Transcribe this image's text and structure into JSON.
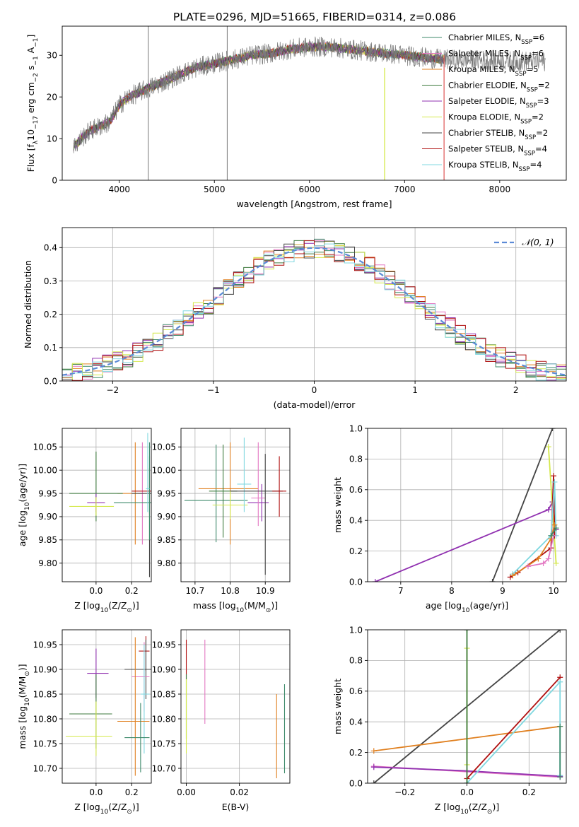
{
  "figure": {
    "title": "PLATE=0296, MJD=51665, FIBERID=0314, z=0.086"
  },
  "model_colors": [
    "#5f7f5f",
    "#9b4fa0",
    "#e4a72e",
    "#3d7a3d",
    "#8e2aa8",
    "#d7e54a",
    "#555555",
    "#b01010",
    "#7fd6e0"
  ],
  "models": [
    {
      "label": "Chabrier MILES, N",
      "sub": "SSP",
      "tail": "=6",
      "color": "#3d8a6a"
    },
    {
      "label": "Salpeter MILES, N",
      "sub": "SSP",
      "tail": "=6",
      "color": "#e377c2"
    },
    {
      "label": "Kroupa MILES, N",
      "sub": "SSP",
      "tail": "=5",
      "color": "#e08020"
    },
    {
      "label": "Chabrier ELODIE, N",
      "sub": "SSP",
      "tail": "=2",
      "color": "#3d7a3d"
    },
    {
      "label": "Salpeter ELODIE, N",
      "sub": "SSP",
      "tail": "=3",
      "color": "#9030b0"
    },
    {
      "label": "Kroupa ELODIE, N",
      "sub": "SSP",
      "tail": "=2",
      "color": "#d4e84a"
    },
    {
      "label": "Chabrier STELIB, N",
      "sub": "SSP",
      "tail": "=2",
      "color": "#444444"
    },
    {
      "label": "Salpeter STELIB, N",
      "sub": "SSP",
      "tail": "=4",
      "color": "#b01010"
    },
    {
      "label": "Kroupa STELIB, N",
      "sub": "SSP",
      "tail": "=4",
      "color": "#80d8e0"
    }
  ],
  "chart_data": [
    {
      "id": "spectrum",
      "type": "line",
      "xlabel": "wavelength [Angstrom, rest frame]",
      "ylabel_parts": [
        "Flux [f",
        "λ",
        "10",
        "−17",
        " erg cm",
        "−2",
        " s",
        "−1",
        " A",
        "−1",
        "]"
      ],
      "xlim": [
        3400,
        8700
      ],
      "ylim": [
        0,
        37
      ],
      "xticks": [
        4000,
        5000,
        6000,
        7000,
        8000
      ],
      "yticks": [
        0,
        10,
        20,
        30
      ],
      "grid": false,
      "legend": "right",
      "continuum": [
        [
          3520,
          8
        ],
        [
          3600,
          10
        ],
        [
          3700,
          12
        ],
        [
          3800,
          13
        ],
        [
          3900,
          14
        ],
        [
          4000,
          18
        ],
        [
          4100,
          20
        ],
        [
          4200,
          21
        ],
        [
          4300,
          22
        ],
        [
          4400,
          23
        ],
        [
          4500,
          24
        ],
        [
          4600,
          25
        ],
        [
          4700,
          26
        ],
        [
          4800,
          27
        ],
        [
          4900,
          27.5
        ],
        [
          5000,
          28
        ],
        [
          5200,
          29
        ],
        [
          5400,
          30
        ],
        [
          5600,
          30.5
        ],
        [
          5800,
          31.5
        ],
        [
          6000,
          32
        ],
        [
          6200,
          32
        ],
        [
          6400,
          31.5
        ],
        [
          6600,
          31
        ],
        [
          6800,
          30.5
        ],
        [
          7000,
          30
        ],
        [
          7200,
          29.5
        ],
        [
          7400,
          29
        ]
      ],
      "vlines": [
        4305,
        5135
      ]
    },
    {
      "id": "residuals",
      "type": "step",
      "xlabel": "(data-model)/error",
      "ylabel": "Normed distribution",
      "xlim": [
        -2.5,
        2.5
      ],
      "ylim": [
        0,
        0.46
      ],
      "xticks": [
        -2,
        -1,
        0,
        1,
        2
      ],
      "yticks": [
        0.0,
        0.1,
        0.2,
        0.3,
        0.4
      ],
      "grid": true,
      "legend": "top-right",
      "legend_label": "𝒩(0, 1)"
    },
    {
      "id": "age-vs-Z",
      "type": "errorbar",
      "xlabel_parts": [
        "Z [log",
        "10",
        "(Z/Z",
        "⊙",
        ")]"
      ],
      "ylabel_parts": [
        "age  [log",
        "10",
        "(age/yr)]"
      ],
      "xlim": [
        -0.19,
        0.31
      ],
      "ylim": [
        9.76,
        10.09
      ],
      "xticks": [
        0.0,
        0.2
      ],
      "yticks": [
        9.8,
        9.85,
        9.9,
        9.95,
        10.0,
        10.05
      ],
      "grid": true,
      "points": [
        {
          "x": 0.22,
          "y": 9.95,
          "xe": [
            0.1,
            0.05
          ],
          "ye": [
            0.11,
            0.11
          ],
          "c": 2
        },
        {
          "x": 0.26,
          "y": 9.95,
          "xe": [
            0.02,
            0.02
          ],
          "ye": [
            0.11,
            0.11
          ],
          "c": 1
        },
        {
          "x": 0.0,
          "y": 9.95,
          "xe": [
            0.15,
            0.15
          ],
          "ye": [
            0.06,
            0.09
          ],
          "c": 3
        },
        {
          "x": 0.0,
          "y": 9.93,
          "xe": [
            0.05,
            0.05
          ],
          "ye": [
            0.02,
            0.02
          ],
          "c": 4
        },
        {
          "x": 0.0,
          "y": 9.922,
          "xe": [
            0.15,
            0.1
          ],
          "ye": [
            0.02,
            0.02
          ],
          "c": 5
        },
        {
          "x": 0.3,
          "y": 9.95,
          "xe": [
            0.1,
            0.01
          ],
          "ye": [
            0.18,
            0.08
          ],
          "c": 6
        },
        {
          "x": 0.3,
          "y": 9.955,
          "xe": [
            0.1,
            0.01
          ],
          "ye": [
            0.05,
            0.05
          ],
          "c": 7
        },
        {
          "x": 0.3,
          "y": 9.93,
          "xe": [
            0.2,
            0.01
          ],
          "ye": [
            0.08,
            0.13
          ],
          "c": 0
        },
        {
          "x": 0.29,
          "y": 9.96,
          "xe": [
            0.01,
            0.01
          ],
          "ye": [
            0.05,
            0.12
          ],
          "c": 8
        }
      ]
    },
    {
      "id": "age-vs-mass",
      "type": "errorbar",
      "xlabel_parts": [
        "mass [log",
        "10",
        "(M/M",
        "⊙",
        ")]"
      ],
      "xlim": [
        10.66,
        10.97
      ],
      "ylim": [
        9.76,
        10.09
      ],
      "xticks": [
        10.7,
        10.8,
        10.9
      ],
      "yticks": [
        9.8,
        9.85,
        9.9,
        9.95,
        10.0,
        10.05
      ],
      "grid": true,
      "points": [
        {
          "x": 10.76,
          "y": 9.935,
          "xe": [
            0.09,
            0.09
          ],
          "ye": [
            0.09,
            0.12
          ],
          "c": 0
        },
        {
          "x": 10.8,
          "y": 9.96,
          "xe": [
            0.09,
            0.08
          ],
          "ye": [
            0.12,
            0.1
          ],
          "c": 2
        },
        {
          "x": 10.78,
          "y": 9.955,
          "xe": [
            0.04,
            0.04
          ],
          "ye": [
            0.1,
            0.1
          ],
          "c": 3
        },
        {
          "x": 10.8,
          "y": 9.925,
          "xe": [
            0.05,
            0.05
          ],
          "ye": [
            0.03,
            0.03
          ],
          "c": 5
        },
        {
          "x": 10.84,
          "y": 9.97,
          "xe": [
            0.02,
            0.02
          ],
          "ye": [
            0.06,
            0.1
          ],
          "c": 8
        },
        {
          "x": 10.89,
          "y": 9.93,
          "xe": [
            0.04,
            0.02
          ],
          "ye": [
            0.04,
            0.04
          ],
          "c": 4
        },
        {
          "x": 10.88,
          "y": 9.94,
          "xe": [
            0.02,
            0.02
          ],
          "ye": [
            0.06,
            0.12
          ],
          "c": 1
        },
        {
          "x": 10.9,
          "y": 9.955,
          "xe": [
            0.1,
            0.05
          ],
          "ye": [
            0.18,
            0.08
          ],
          "c": 6
        },
        {
          "x": 10.94,
          "y": 9.955,
          "xe": [
            0.02,
            0.02
          ],
          "ye": [
            0.055,
            0.075
          ],
          "c": 7
        }
      ]
    },
    {
      "id": "weight-vs-age",
      "type": "line",
      "xlabel_parts": [
        "age  [log",
        "10",
        "(age/yr)]"
      ],
      "ylabel": "mass weight",
      "xlim": [
        6.35,
        10.25
      ],
      "ylim": [
        0,
        1
      ],
      "xticks": [
        7,
        8,
        9,
        10
      ],
      "yticks": [
        0.0,
        0.2,
        0.4,
        0.6,
        0.8,
        1.0
      ],
      "grid": true,
      "series": [
        {
          "c": 6,
          "pts": [
            [
              8.8,
              0
            ],
            [
              9.98,
              1.0
            ]
          ]
        },
        {
          "c": 4,
          "pts": [
            [
              6.5,
              0
            ],
            [
              9.9,
              0.47
            ],
            [
              9.98,
              0.52
            ],
            [
              10.05,
              0.34
            ]
          ]
        },
        {
          "c": 5,
          "pts": [
            [
              9.9,
              0.88
            ],
            [
              10.05,
              0.12
            ]
          ]
        },
        {
          "c": 7,
          "pts": [
            [
              9.15,
              0.03
            ],
            [
              9.3,
              0.06
            ],
            [
              9.95,
              0.22
            ],
            [
              10.0,
              0.69
            ],
            [
              10.02,
              0.3
            ]
          ]
        },
        {
          "c": 8,
          "pts": [
            [
              9.2,
              0.05
            ],
            [
              9.95,
              0.3
            ],
            [
              10.02,
              0.65
            ],
            [
              10.05,
              0.3
            ]
          ]
        },
        {
          "c": 2,
          "pts": [
            [
              9.2,
              0.04
            ],
            [
              9.7,
              0.15
            ],
            [
              9.95,
              0.28
            ],
            [
              10.02,
              0.37
            ]
          ]
        },
        {
          "c": 1,
          "pts": [
            [
              9.5,
              0.1
            ],
            [
              9.8,
              0.12
            ],
            [
              9.9,
              0.15
            ],
            [
              10.0,
              0.3
            ]
          ]
        },
        {
          "c": 0,
          "pts": [
            [
              9.95,
              0.3
            ],
            [
              10.05,
              0.35
            ]
          ]
        }
      ]
    },
    {
      "id": "mass-vs-Z",
      "type": "errorbar",
      "xlabel_parts": [
        "Z [log",
        "10",
        "(Z/Z",
        "⊙",
        ")]"
      ],
      "ylabel_parts": [
        "mass [log",
        "10",
        "(M/M",
        "⊙",
        ")]"
      ],
      "xlim": [
        -0.19,
        0.31
      ],
      "ylim": [
        10.67,
        10.98
      ],
      "xticks": [
        0.0,
        0.2
      ],
      "yticks": [
        10.7,
        10.75,
        10.8,
        10.85,
        10.9,
        10.95
      ],
      "grid": true,
      "points": [
        {
          "x": 0.0,
          "y": 10.892,
          "xe": [
            0.05,
            0.07
          ],
          "ye": [
            0.05,
            0.05
          ],
          "c": 4
        },
        {
          "x": 0.28,
          "y": 10.937,
          "xe": [
            0.04,
            0.02
          ],
          "ye": [
            0.04,
            0.03
          ],
          "c": 7
        },
        {
          "x": 0.28,
          "y": 10.9,
          "xe": [
            0.12,
            0.03
          ],
          "ye": [
            0.06,
            0.06
          ],
          "c": 6
        },
        {
          "x": 0.27,
          "y": 10.885,
          "xe": [
            0.07,
            0.03
          ],
          "ye": [
            0.07,
            0.07
          ],
          "c": 1
        },
        {
          "x": 0.27,
          "y": 10.85,
          "xe": [
            0.02,
            0.03
          ],
          "ye": [
            0.12,
            0.1
          ],
          "c": 8
        },
        {
          "x": 0.0,
          "y": 10.81,
          "xe": [
            0.15,
            0.09
          ],
          "ye": [
            0.07,
            0.08
          ],
          "c": 3
        },
        {
          "x": 0.22,
          "y": 10.795,
          "xe": [
            0.1,
            0.08
          ],
          "ye": [
            0.11,
            0.17
          ],
          "c": 2
        },
        {
          "x": 0.0,
          "y": 10.765,
          "xe": [
            0.17,
            0.09
          ],
          "ye": [
            0.04,
            0.07
          ],
          "c": 5
        },
        {
          "x": 0.25,
          "y": 10.762,
          "xe": [
            0.09,
            0.05
          ],
          "ye": [
            0.07,
            0.07
          ],
          "c": 0
        }
      ]
    },
    {
      "id": "mass-vs-EBV",
      "type": "errorbar",
      "xlabel": "E(B-V)",
      "xlim": [
        -0.002,
        0.039
      ],
      "ylim": [
        10.67,
        10.98
      ],
      "xticks": [
        0.0,
        0.02
      ],
      "yticks": [
        10.7,
        10.75,
        10.8,
        10.85,
        10.9,
        10.95
      ],
      "grid": true,
      "points": [
        {
          "x": 0.0,
          "y": 10.92,
          "xe": [
            0,
            0
          ],
          "ye": [
            0.04,
            0.04
          ],
          "c": 7
        },
        {
          "x": 0.0,
          "y": 10.84,
          "xe": [
            0,
            0
          ],
          "ye": [
            0.08,
            0.05
          ],
          "c": 3
        },
        {
          "x": 0.0,
          "y": 10.8,
          "xe": [
            0,
            0
          ],
          "ye": [
            0.07,
            0.08
          ],
          "c": 5
        },
        {
          "x": 0.007,
          "y": 10.87,
          "xe": [
            0,
            0
          ],
          "ye": [
            0.08,
            0.09
          ],
          "c": 1
        },
        {
          "x": 0.034,
          "y": 10.77,
          "xe": [
            0,
            0
          ],
          "ye": [
            0.09,
            0.08
          ],
          "c": 2
        },
        {
          "x": 0.037,
          "y": 10.78,
          "xe": [
            0,
            0
          ],
          "ye": [
            0.09,
            0.09
          ],
          "c": 0
        }
      ]
    },
    {
      "id": "weight-vs-Z",
      "type": "line",
      "xlabel_parts": [
        "Z [log",
        "10",
        "(Z/Z",
        "⊙",
        ")]"
      ],
      "ylabel": "mass weight",
      "xlim": [
        -0.32,
        0.32
      ],
      "ylim": [
        0,
        1
      ],
      "xticks": [
        -0.2,
        0.0,
        0.2
      ],
      "yticks": [
        0.0,
        0.2,
        0.4,
        0.6,
        0.8,
        1.0
      ],
      "grid": true,
      "series": [
        {
          "c": 6,
          "pts": [
            [
              -0.3,
              0
            ],
            [
              0.3,
              1.0
            ]
          ]
        },
        {
          "c": 2,
          "pts": [
            [
              -0.3,
              0.21
            ],
            [
              0.0,
              0.29
            ],
            [
              0.3,
              0.37
            ]
          ]
        },
        {
          "c": 1,
          "pts": [
            [
              -0.3,
              0.11
            ],
            [
              0.0,
              0.075
            ],
            [
              0.3,
              0.04
            ]
          ]
        },
        {
          "c": 4,
          "pts": [
            [
              -0.3,
              0.105
            ],
            [
              0.0,
              0.08
            ],
            [
              0.3,
              0.045
            ]
          ]
        },
        {
          "c": 7,
          "pts": [
            [
              0.0,
              0.03
            ],
            [
              0.3,
              0.69
            ]
          ]
        },
        {
          "c": 8,
          "pts": [
            [
              0.0,
              0.0
            ],
            [
              0.3,
              0.66
            ],
            [
              0.3,
              0.05
            ]
          ]
        },
        {
          "c": 5,
          "pts": [
            [
              0.0,
              0.88
            ],
            [
              0.0,
              0.12
            ]
          ]
        },
        {
          "c": 3,
          "pts": [
            [
              0.0,
              1.0
            ],
            [
              0.0,
              0.0
            ]
          ]
        },
        {
          "c": 0,
          "pts": [
            [
              0.3,
              0.37
            ],
            [
              0.3,
              0.04
            ]
          ]
        }
      ]
    }
  ]
}
